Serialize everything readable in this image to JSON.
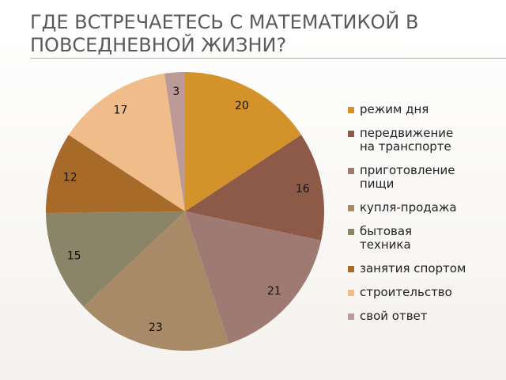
{
  "chart_data": {
    "type": "pie",
    "title": "ГДЕ ВСТРЕЧАЕТЕСЬ С МАТЕМАТИКОЙ В ПОВСЕДНЕВНОЙ ЖИЗНИ?",
    "categories": [
      "режим дня",
      "передвижение на транспорте",
      "приготовление пищи",
      "купля-продажа",
      "бытовая техника",
      "занятия спортом",
      "строительство",
      "свой ответ"
    ],
    "values": [
      20,
      16,
      21,
      23,
      15,
      12,
      17,
      3
    ],
    "colors": [
      "#d4922a",
      "#8e5a48",
      "#9e7a72",
      "#a88a68",
      "#8c8468",
      "#a86a28",
      "#f0bc8a",
      "#bc9a98"
    ],
    "legend": "right"
  }
}
